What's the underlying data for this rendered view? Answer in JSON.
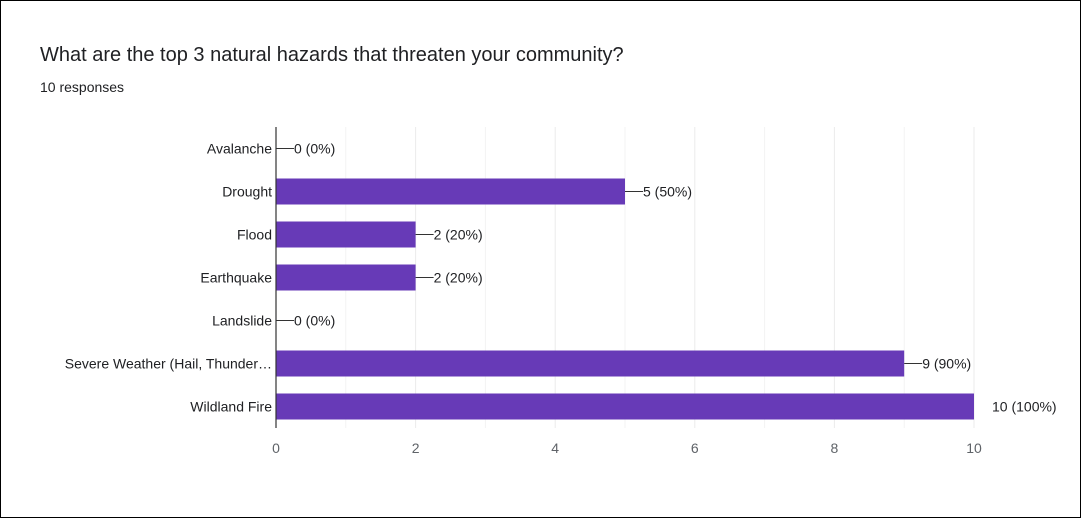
{
  "card": {
    "title": "What are the top 3 natural hazards that threaten your community?",
    "subtitle": "10 responses"
  },
  "colors": {
    "bar": "#673ab7",
    "grid": "#ebebeb",
    "axis": "#333333",
    "text": "#202124",
    "tick": "#5f6368"
  },
  "chart_data": {
    "type": "bar",
    "orientation": "horizontal",
    "categories": [
      "Avalanche",
      "Drought",
      "Flood",
      "Earthquake",
      "Landslide",
      "Severe Weather (Hail, Thunder…",
      "Wildland Fire"
    ],
    "values": [
      0,
      5,
      2,
      2,
      0,
      9,
      10
    ],
    "data_labels": [
      "0 (0%)",
      "5 (50%)",
      "2 (20%)",
      "2 (20%)",
      "0 (0%)",
      "9 (90%)",
      "10 (100%)"
    ],
    "xlim": [
      0,
      10
    ],
    "xticks": [
      0,
      2,
      4,
      6,
      8,
      10
    ],
    "grid": true
  }
}
